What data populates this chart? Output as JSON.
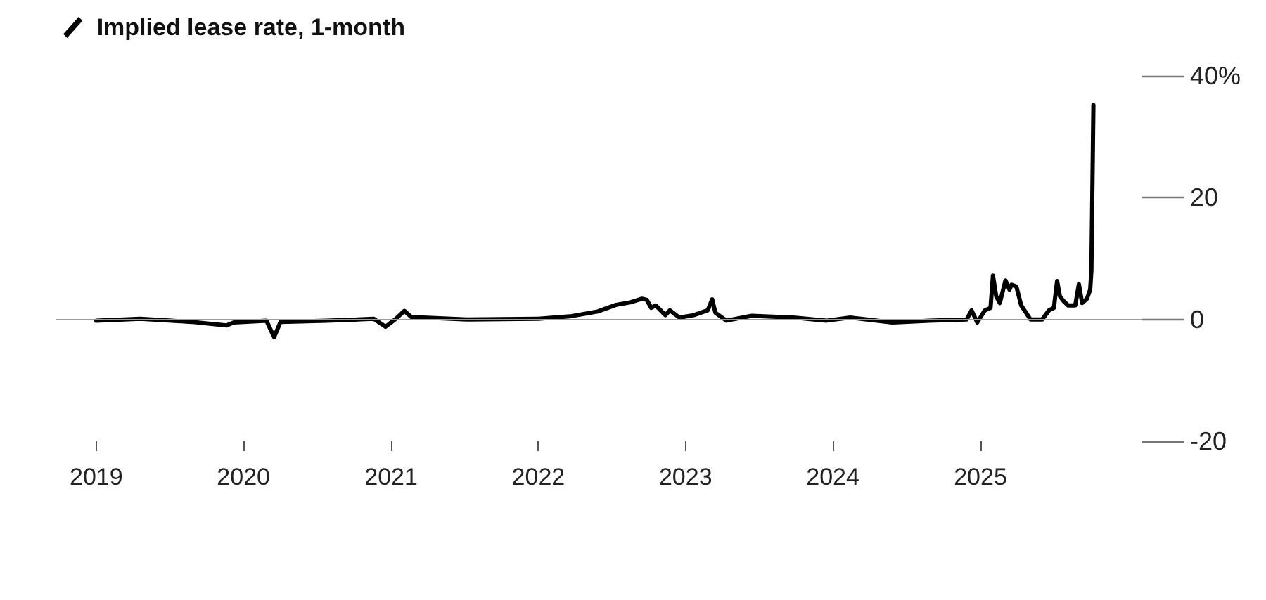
{
  "chart_data": {
    "type": "line",
    "legend": "top left",
    "marker": "none",
    "line_style": "solid",
    "xlim": [
      "2018-09-24",
      "2026-02-06"
    ],
    "xticks": [
      {
        "value": "2019-01-01",
        "label": "2019"
      },
      {
        "value": "2020-01-01",
        "label": "2020"
      },
      {
        "value": "2021-01-01",
        "label": "2021"
      },
      {
        "value": "2022-01-01",
        "label": "2022"
      },
      {
        "value": "2023-01-01",
        "label": "2023"
      },
      {
        "value": "2024-01-01",
        "label": "2024"
      },
      {
        "value": "2025-01-01",
        "label": "2025"
      }
    ],
    "ylim": [
      -20,
      40
    ],
    "yticks": [
      -20,
      0,
      20,
      {
        "value": 40,
        "label": "40%"
      }
    ],
    "ref_lines": [
      {
        "axis": "y",
        "value": 0,
        "color": "#9a9a9a"
      }
    ],
    "x": [
      "2019-01-01",
      "2019-04-20",
      "2019-08-25",
      "2019-11-20",
      "2019-12-08",
      "2020-02-27",
      "2020-03-17",
      "2020-04-02",
      "2020-07-26",
      "2020-11-19",
      "2020-12-18",
      "2021-01-11",
      "2021-02-03",
      "2021-02-20",
      "2021-07-08",
      "2022-01-01",
      "2022-03-20",
      "2022-05-28",
      "2022-07-13",
      "2022-08-17",
      "2022-09-15",
      "2022-09-27",
      "2022-10-08",
      "2022-10-19",
      "2022-11-12",
      "2022-11-23",
      "2022-12-17",
      "2023-01-21",
      "2023-02-25",
      "2023-03-08",
      "2023-03-16",
      "2023-04-12",
      "2023-06-14",
      "2023-09-26",
      "2023-12-17",
      "2024-02-13",
      "2024-05-27",
      "2024-08-27",
      "2024-11-28",
      "2024-12-10",
      "2024-12-24",
      "2025-01-12",
      "2025-01-26",
      "2025-02-01",
      "2025-02-09",
      "2025-02-18",
      "2025-03-04",
      "2025-03-14",
      "2025-03-19",
      "2025-03-31",
      "2025-04-12",
      "2025-04-24",
      "2025-05-05",
      "2025-06-03",
      "2025-06-20",
      "2025-07-02",
      "2025-07-10",
      "2025-07-17",
      "2025-07-25",
      "2025-08-06",
      "2025-08-24",
      "2025-09-02",
      "2025-09-10",
      "2025-09-22",
      "2025-09-30",
      "2025-10-03",
      "2025-10-08"
    ],
    "series": [
      {
        "name": "Implied lease rate, 1-month",
        "color": "#000000",
        "values": [
          -0.2,
          0.1,
          -0.4,
          -1.0,
          -0.5,
          -0.2,
          -2.9,
          -0.4,
          -0.2,
          0.1,
          -1.2,
          0,
          1.4,
          0.4,
          0,
          0.1,
          0.5,
          1.3,
          2.4,
          2.8,
          3.4,
          3.2,
          1.9,
          2.3,
          0.7,
          1.5,
          0.3,
          0.7,
          1.5,
          3.3,
          1.1,
          -0.2,
          0.6,
          0.3,
          -0.2,
          0.3,
          -0.5,
          -0.2,
          0,
          1.5,
          -0.5,
          1.5,
          1.9,
          7.2,
          3.8,
          2.7,
          6.4,
          4.9,
          5.7,
          5.4,
          2.3,
          1.1,
          0,
          0,
          1.5,
          1.9,
          6.3,
          3.8,
          3.1,
          2.3,
          2.3,
          5.8,
          2.7,
          3.4,
          4.9,
          8.0,
          35.2
        ]
      }
    ]
  }
}
